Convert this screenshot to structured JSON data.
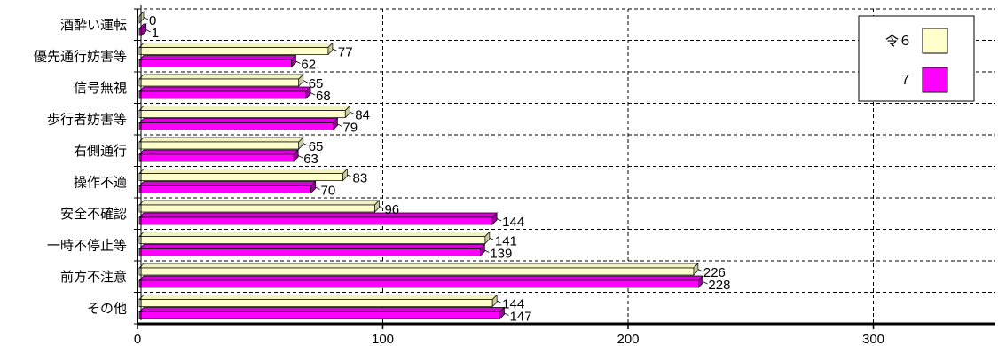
{
  "chart_data": {
    "type": "bar",
    "orientation": "horizontal",
    "categories": [
      "酒酔い運転",
      "優先通行妨害等",
      "信号無視",
      "歩行者妨害等",
      "右側通行",
      "操作不適",
      "安全不確認",
      "一時不停止等",
      "前方不注意",
      "その他"
    ],
    "series": [
      {
        "name": "令６",
        "color": "#FFFFCC",
        "values": [
          0,
          77,
          65,
          84,
          65,
          83,
          96,
          141,
          226,
          144
        ]
      },
      {
        "name": "７",
        "color": "#FF00FF",
        "values": [
          1,
          62,
          68,
          79,
          63,
          70,
          144,
          139,
          228,
          147
        ]
      }
    ],
    "xlim": [
      0,
      350
    ],
    "xticks": [
      0,
      100,
      200,
      300
    ],
    "grid": true,
    "legend": "top-right",
    "title": "",
    "xlabel": "",
    "ylabel": ""
  }
}
